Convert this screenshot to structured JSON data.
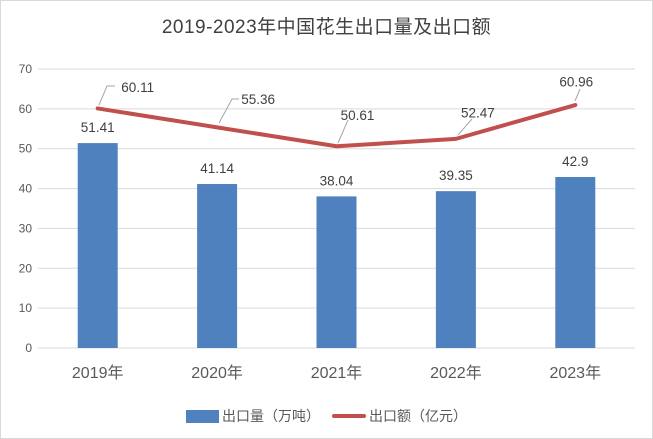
{
  "title": "2019-2023年中国花生出口量及出口额",
  "chart_data": {
    "type": "bar",
    "title": "2019-2023年中国花生出口量及出口额",
    "categories": [
      "2019年",
      "2020年",
      "2021年",
      "2022年",
      "2023年"
    ],
    "series": [
      {
        "name": "出口量（万吨）",
        "type": "bar",
        "color": "#4E81BD",
        "values": [
          51.41,
          41.14,
          38.04,
          39.35,
          42.9
        ]
      },
      {
        "name": "出口额（亿元）",
        "type": "line",
        "color": "#C0504D",
        "values": [
          60.11,
          55.36,
          50.61,
          52.47,
          60.96
        ]
      }
    ],
    "ylim": [
      0,
      70
    ],
    "yticks": [
      0,
      10,
      20,
      30,
      40,
      50,
      60,
      70
    ],
    "grid": true,
    "data_labels": true,
    "legend_position": "bottom"
  },
  "colors": {
    "bar": "#4E81BD",
    "line": "#C0504D",
    "grid": "#D9D9D9",
    "tick_text": "#595959",
    "label_text": "#404040",
    "leader": "#A6A6A6",
    "border": "#D9D9D9",
    "background": "#FFFFFF"
  }
}
